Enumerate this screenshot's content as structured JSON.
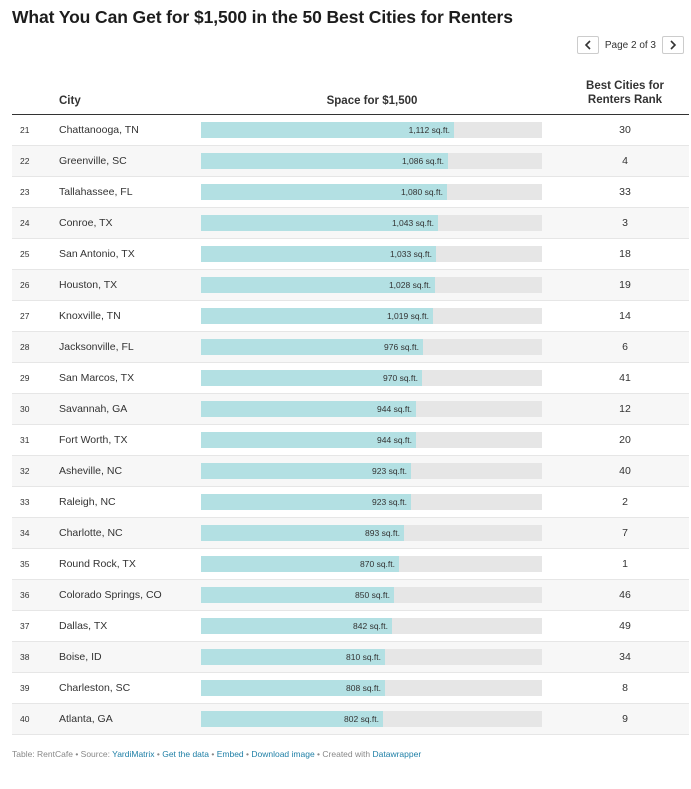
{
  "title": "What You Can Get for $1,500 in the 50 Best Cities for Renters",
  "pagination": {
    "label": "Page 2 of 3",
    "prev_icon": "chevron-left-icon",
    "next_icon": "chevron-right-icon"
  },
  "headers": {
    "city": "City",
    "space": "Space for $1,500",
    "rank_line1": "Best Cities for",
    "rank_line2": "Renters Rank"
  },
  "colors": {
    "bar": "#b3e0e3",
    "track": "#e6e6e6",
    "link": "#1e7fa6"
  },
  "chart_data": {
    "type": "table",
    "columns": [
      "",
      "City",
      "Space for $1,500",
      "Best Cities for Renters Rank"
    ],
    "bar_max": 1500,
    "rows": [
      {
        "num": "21",
        "city": "Chattanooga, TN",
        "space": 1112,
        "label": "1,112 sq.ft.",
        "rank": "30"
      },
      {
        "num": "22",
        "city": "Greenville, SC",
        "space": 1086,
        "label": "1,086 sq.ft.",
        "rank": "4"
      },
      {
        "num": "23",
        "city": "Tallahassee, FL",
        "space": 1080,
        "label": "1,080 sq.ft.",
        "rank": "33"
      },
      {
        "num": "24",
        "city": "Conroe, TX",
        "space": 1043,
        "label": "1,043 sq.ft.",
        "rank": "3"
      },
      {
        "num": "25",
        "city": "San Antonio, TX",
        "space": 1033,
        "label": "1,033 sq.ft.",
        "rank": "18"
      },
      {
        "num": "26",
        "city": "Houston, TX",
        "space": 1028,
        "label": "1,028 sq.ft.",
        "rank": "19"
      },
      {
        "num": "27",
        "city": "Knoxville, TN",
        "space": 1019,
        "label": "1,019 sq.ft.",
        "rank": "14"
      },
      {
        "num": "28",
        "city": "Jacksonville, FL",
        "space": 976,
        "label": "976 sq.ft.",
        "rank": "6"
      },
      {
        "num": "29",
        "city": "San Marcos, TX",
        "space": 970,
        "label": "970 sq.ft.",
        "rank": "41"
      },
      {
        "num": "30",
        "city": "Savannah, GA",
        "space": 944,
        "label": "944 sq.ft.",
        "rank": "12"
      },
      {
        "num": "31",
        "city": "Fort Worth, TX",
        "space": 944,
        "label": "944 sq.ft.",
        "rank": "20"
      },
      {
        "num": "32",
        "city": "Asheville, NC",
        "space": 923,
        "label": "923 sq.ft.",
        "rank": "40"
      },
      {
        "num": "33",
        "city": "Raleigh, NC",
        "space": 923,
        "label": "923 sq.ft.",
        "rank": "2"
      },
      {
        "num": "34",
        "city": "Charlotte, NC",
        "space": 893,
        "label": "893 sq.ft.",
        "rank": "7"
      },
      {
        "num": "35",
        "city": "Round Rock, TX",
        "space": 870,
        "label": "870 sq.ft.",
        "rank": "1"
      },
      {
        "num": "36",
        "city": "Colorado Springs, CO",
        "space": 850,
        "label": "850 sq.ft.",
        "rank": "46"
      },
      {
        "num": "37",
        "city": "Dallas, TX",
        "space": 842,
        "label": "842 sq.ft.",
        "rank": "49"
      },
      {
        "num": "38",
        "city": "Boise, ID",
        "space": 810,
        "label": "810 sq.ft.",
        "rank": "34"
      },
      {
        "num": "39",
        "city": "Charleston, SC",
        "space": 808,
        "label": "808 sq.ft.",
        "rank": "8"
      },
      {
        "num": "40",
        "city": "Atlanta, GA",
        "space": 802,
        "label": "802 sq.ft.",
        "rank": "9"
      }
    ]
  },
  "footer": {
    "prefix": "Table: RentCafe • Source: ",
    "source": "YardiMatrix",
    "sep": " • ",
    "get_data": "Get the data",
    "embed": "Embed",
    "download": "Download image",
    "created": "Created with ",
    "datawrapper": "Datawrapper"
  }
}
